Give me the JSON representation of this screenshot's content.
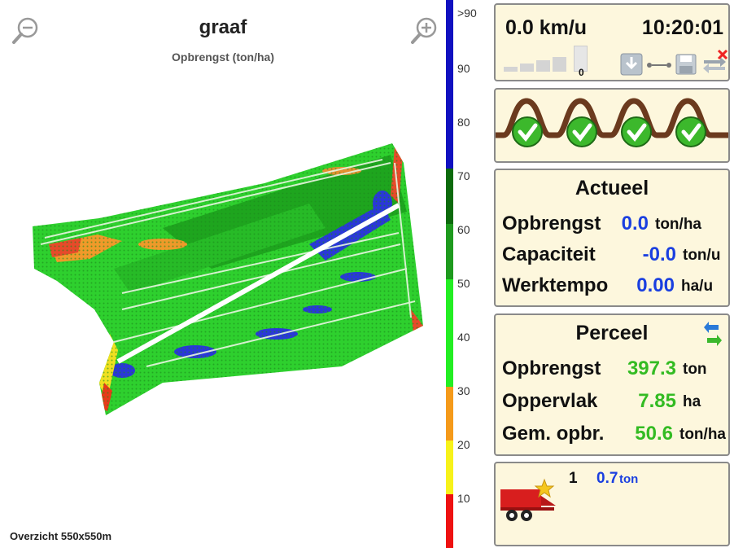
{
  "map": {
    "title": "graaf",
    "subtitle": "Opbrengst (ton/ha)",
    "overview": "Overzicht 550x550m",
    "zoom_out_icon": "zoom-out-icon",
    "zoom_in_icon": "zoom-in-icon"
  },
  "legend": {
    "labels": [
      ">90",
      "90",
      "80",
      "70",
      "60",
      "50",
      "40",
      "30",
      "20",
      "10"
    ],
    "colors": [
      "#1010c0",
      "#1010c0",
      "#1010c0",
      "#0c6a0c",
      "#0c6a0c",
      "#22aa22",
      "#22ee22",
      "#f59a1a",
      "#f7f21a",
      "#ee1111"
    ]
  },
  "status": {
    "speed": "0.0 km/u",
    "time": "10:20:01",
    "signal_count": "0",
    "icons": [
      "download-icon",
      "link-icon",
      "save-icon",
      "transfer-cancel-icon"
    ]
  },
  "rows": {
    "count": 4,
    "status_icon": "check-circle-icon"
  },
  "actueel": {
    "title": "Actueel",
    "rows": [
      {
        "label": "Opbrengst",
        "value": "0.0",
        "unit": "ton/ha"
      },
      {
        "label": "Capaciteit",
        "value": "-0.0",
        "unit": "ton/u"
      },
      {
        "label": "Werktempo",
        "value": "0.00",
        "unit": "ha/u"
      }
    ]
  },
  "perceel": {
    "title": "Perceel",
    "refresh_icon": "refresh-icon",
    "rows": [
      {
        "label": "Opbrengst",
        "value": "397.3",
        "unit": "ton"
      },
      {
        "label": "Oppervlak",
        "value": "7.85",
        "unit": "ha"
      },
      {
        "label": "Gem. opbr.",
        "value": "50.6",
        "unit": "ton/ha"
      }
    ]
  },
  "cart": {
    "count": "1",
    "value": "0.7",
    "unit": "ton",
    "icon": "grain-cart-icon"
  },
  "colors": {
    "panel_bg": "#fdf7dd",
    "value_blue": "#1a3fe0",
    "value_green": "#33bb22",
    "row_brown": "#6b3a1e",
    "check_green": "#3cb82c"
  }
}
